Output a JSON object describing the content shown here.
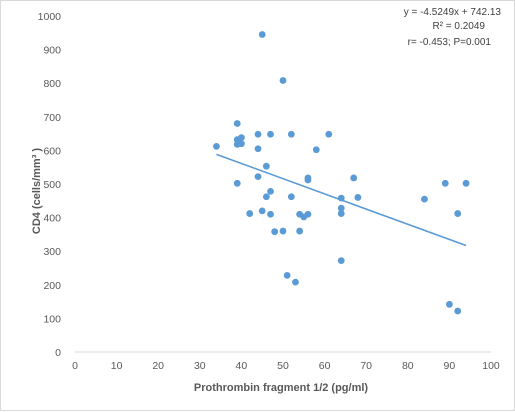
{
  "chart_data": {
    "type": "scatter",
    "xlabel": "Prothrombin fragment 1/2 (pg/ml)",
    "ylabel": "CD4 (cells/mm³ )",
    "xlim": [
      0,
      100
    ],
    "ylim": [
      0,
      1000
    ],
    "xticks": [
      0,
      10,
      20,
      30,
      40,
      50,
      60,
      70,
      80,
      90,
      100
    ],
    "yticks": [
      0,
      100,
      200,
      300,
      400,
      500,
      600,
      700,
      800,
      900,
      1000
    ],
    "grid": "none",
    "series": [
      {
        "color": "#5b9bd5",
        "points": [
          [
            34,
            612
          ],
          [
            39,
            680
          ],
          [
            39,
            632
          ],
          [
            39,
            618
          ],
          [
            39,
            502
          ],
          [
            40,
            638
          ],
          [
            40,
            620
          ],
          [
            42,
            412
          ],
          [
            44,
            648
          ],
          [
            44,
            605
          ],
          [
            44,
            522
          ],
          [
            45,
            945
          ],
          [
            45,
            420
          ],
          [
            46,
            553
          ],
          [
            46,
            462
          ],
          [
            47,
            648
          ],
          [
            47,
            478
          ],
          [
            47,
            410
          ],
          [
            48,
            358
          ],
          [
            50,
            808
          ],
          [
            50,
            360
          ],
          [
            51,
            228
          ],
          [
            52,
            648
          ],
          [
            52,
            462
          ],
          [
            53,
            208
          ],
          [
            54,
            410
          ],
          [
            54,
            360
          ],
          [
            55,
            402
          ],
          [
            56,
            410
          ],
          [
            56,
            518
          ],
          [
            56,
            512
          ],
          [
            58,
            602
          ],
          [
            61,
            648
          ],
          [
            64,
            458
          ],
          [
            64,
            428
          ],
          [
            64,
            412
          ],
          [
            64,
            272
          ],
          [
            67,
            518
          ],
          [
            68,
            460
          ],
          [
            84,
            455
          ],
          [
            89,
            502
          ],
          [
            90,
            142
          ],
          [
            92,
            412
          ],
          [
            92,
            122
          ],
          [
            94,
            502
          ]
        ]
      }
    ],
    "trendline": {
      "type": "linear",
      "slope": -4.5249,
      "intercept": 742.13,
      "x_range": [
        34,
        94
      ],
      "color": "#5b9bd5"
    },
    "annotations": [
      "y = -4.5249x + 742.13",
      "R² = 0.2049",
      "r= -0.453; P=0.001"
    ]
  }
}
